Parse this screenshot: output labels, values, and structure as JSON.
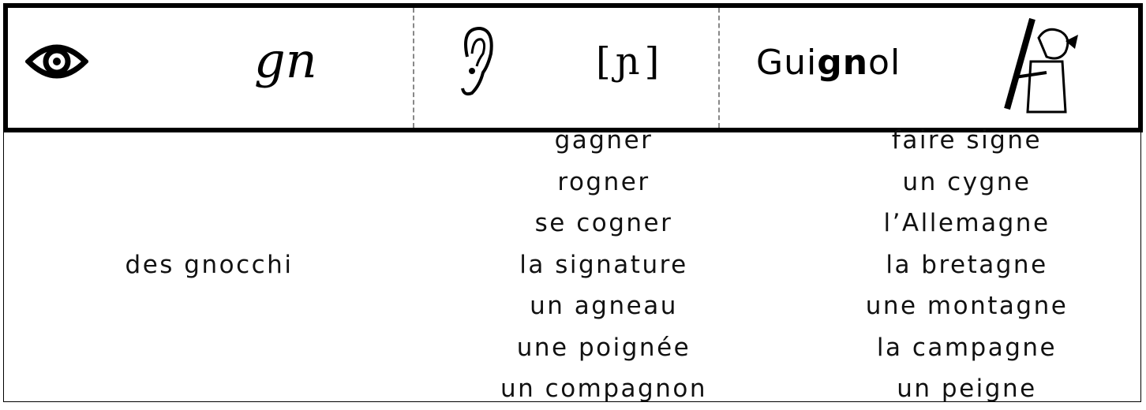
{
  "header": {
    "grapheme": "gn",
    "phoneme": "[ɲ]",
    "word": {
      "before": "Gui",
      "bold": "gn",
      "after": "ol"
    }
  },
  "columns": [
    [
      "des gnocchi"
    ],
    [
      "gagner",
      "rogner",
      "se cogner",
      "la signature",
      "un agneau",
      "une poignée",
      "un compagnon"
    ],
    [
      "faire signe",
      "un cygne",
      "l’Allemagne",
      "la bretagne",
      "une montagne",
      "la campagne",
      "un peigne"
    ]
  ]
}
